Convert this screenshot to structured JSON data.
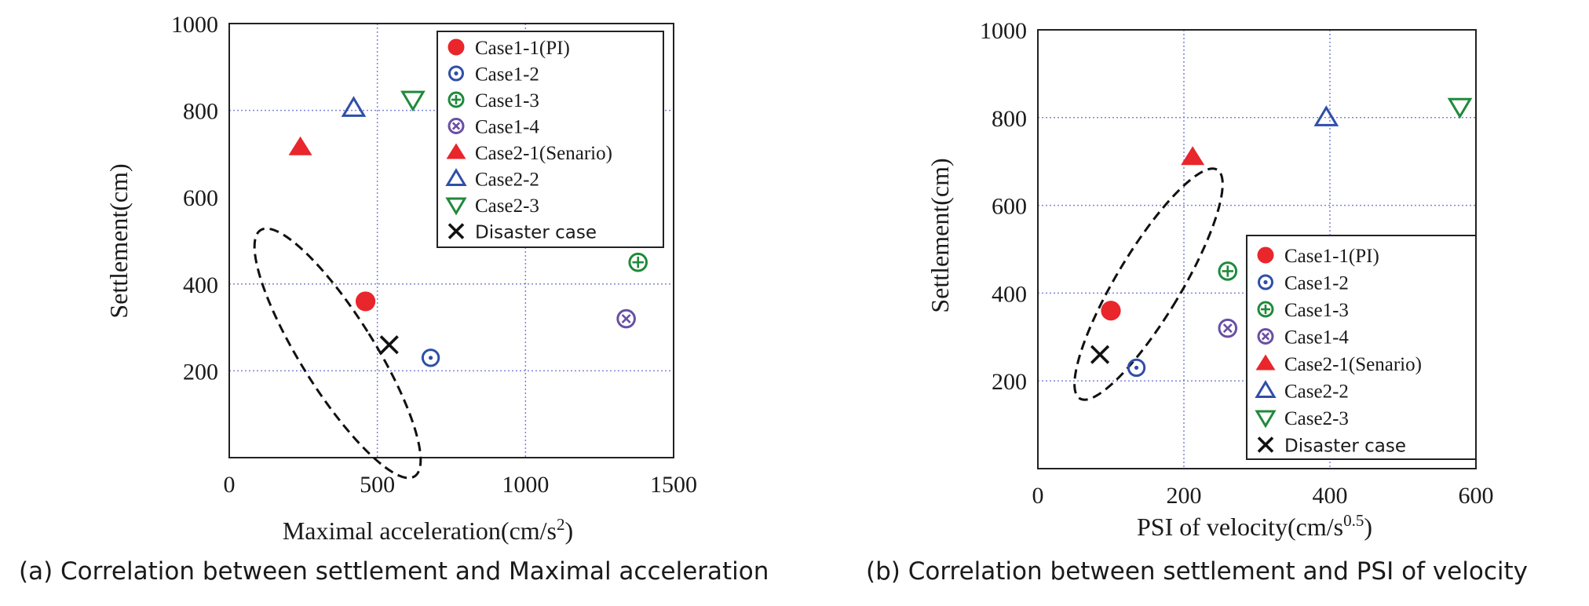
{
  "chart_data": [
    {
      "type": "scatter",
      "caption": "(a) Correlation between settlement and Maximal acceleration",
      "xlabel_main": "Maximal acceleration(cm/s",
      "xlabel_sup": "2",
      "xlabel_tail": ")",
      "ylabel": "Settlement(cm)",
      "xlim": [
        0,
        1500
      ],
      "ylim": [
        0,
        1000
      ],
      "x_ticks": [
        0,
        500,
        1000,
        1500
      ],
      "y_ticks": [
        200,
        400,
        600,
        800,
        1000
      ],
      "x_tick_labels": [
        "0",
        "500",
        "1000",
        "1500"
      ],
      "y_tick_labels": [
        "200",
        "400",
        "600",
        "800",
        "1000"
      ],
      "x_grid": [
        500,
        1000
      ],
      "y_grid": [
        200,
        400,
        800
      ],
      "legend_position": "top-right",
      "series": [
        {
          "name": "Case1-1(PI)",
          "marker": "filled-circle",
          "color": "#e8262b",
          "x": 460,
          "y": 360
        },
        {
          "name": "Case1-2",
          "marker": "dot-circle",
          "color": "#2f4fa8",
          "x": 680,
          "y": 230
        },
        {
          "name": "Case1-3",
          "marker": "plus-circle",
          "color": "#1f8a3b",
          "x": 1380,
          "y": 450
        },
        {
          "name": "Case1-4",
          "marker": "x-circle",
          "color": "#6a4fa3",
          "x": 1340,
          "y": 320
        },
        {
          "name": "Case2-1(Senario)",
          "marker": "filled-triangle",
          "color": "#e8262b",
          "x": 240,
          "y": 715
        },
        {
          "name": "Case2-2",
          "marker": "open-triangle",
          "color": "#2f4fa8",
          "x": 420,
          "y": 805
        },
        {
          "name": "Case2-3",
          "marker": "open-triangle-down",
          "color": "#1f8a3b",
          "x": 620,
          "y": 825
        },
        {
          "name": "Disaster case",
          "marker": "x",
          "color": "#111111",
          "x": 540,
          "y": 260
        }
      ]
    },
    {
      "type": "scatter",
      "caption": "(b) Correlation between settlement and PSI of velocity",
      "xlabel_main": "PSI of velocity(cm/s",
      "xlabel_sup": "0.5",
      "xlabel_tail": ")",
      "ylabel": "Settlement(cm)",
      "xlim": [
        0,
        600
      ],
      "ylim": [
        0,
        1000
      ],
      "x_ticks": [
        0,
        200,
        400,
        600
      ],
      "y_ticks": [
        200,
        400,
        600,
        800,
        1000
      ],
      "x_tick_labels": [
        "0",
        "200",
        "400",
        "600"
      ],
      "y_tick_labels": [
        "200",
        "400",
        "600",
        "800",
        "1000"
      ],
      "x_grid": [
        200,
        400
      ],
      "y_grid": [
        200,
        400,
        600,
        800
      ],
      "legend_position": "bottom-right",
      "series": [
        {
          "name": "Case1-1(PI)",
          "marker": "filled-circle",
          "color": "#e8262b",
          "x": 100,
          "y": 360
        },
        {
          "name": "Case1-2",
          "marker": "dot-circle",
          "color": "#2f4fa8",
          "x": 135,
          "y": 230
        },
        {
          "name": "Case1-3",
          "marker": "plus-circle",
          "color": "#1f8a3b",
          "x": 260,
          "y": 450
        },
        {
          "name": "Case1-4",
          "marker": "x-circle",
          "color": "#6a4fa3",
          "x": 260,
          "y": 320
        },
        {
          "name": "Case2-1(Senario)",
          "marker": "filled-triangle",
          "color": "#e8262b",
          "x": 212,
          "y": 710
        },
        {
          "name": "Case2-2",
          "marker": "open-triangle",
          "color": "#2f4fa8",
          "x": 395,
          "y": 800
        },
        {
          "name": "Case2-3",
          "marker": "open-triangle-down",
          "color": "#1f8a3b",
          "x": 578,
          "y": 825
        },
        {
          "name": "Disaster case",
          "marker": "x",
          "color": "#111111",
          "x": 85,
          "y": 260
        }
      ]
    }
  ]
}
